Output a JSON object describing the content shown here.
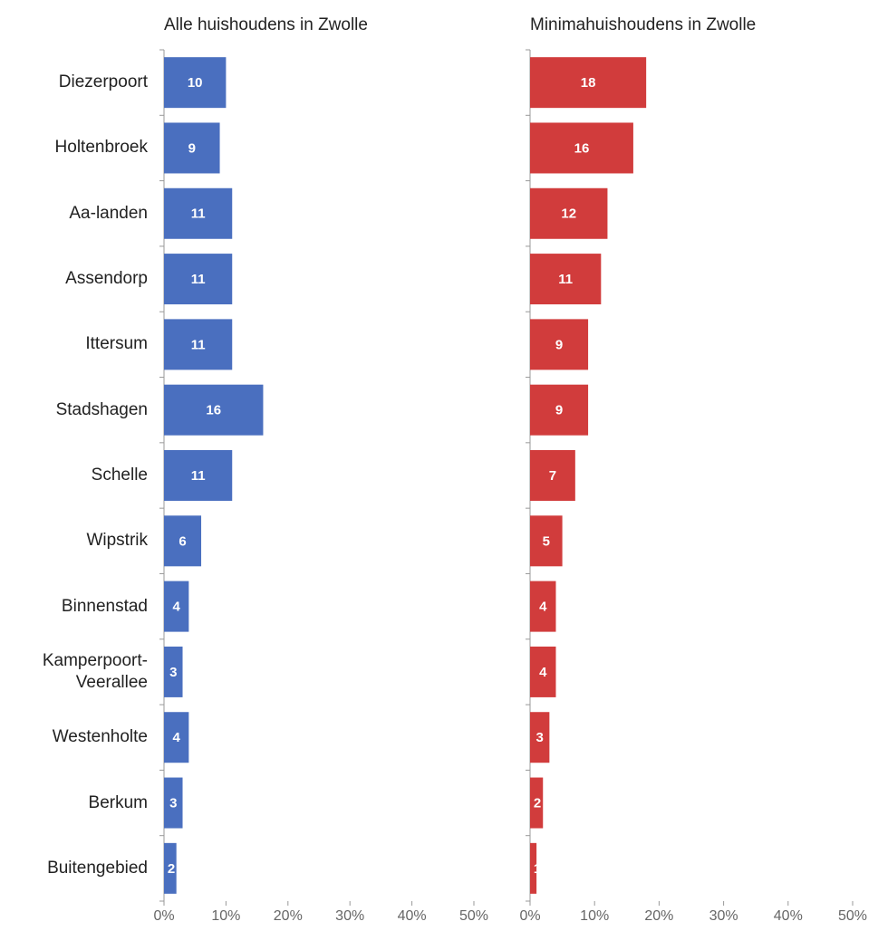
{
  "chart_data": [
    {
      "type": "bar",
      "title": "Alle huishoudens  in Zwolle",
      "categories": [
        "Diezerpoort",
        "Holtenbroek",
        "Aa-landen",
        "Assendorp",
        "Ittersum",
        "Stadshagen",
        "Schelle",
        "Wipstrik",
        "Binnenstad",
        "Kamperpoort-Veerallee",
        "Westenholte",
        "Berkum",
        "Buitengebied"
      ],
      "values": [
        10,
        9,
        11,
        11,
        11,
        16,
        11,
        6,
        4,
        3,
        4,
        3,
        2
      ],
      "color": "#4a6fbf",
      "xlim": [
        0,
        50
      ],
      "xticks": [
        {
          "value": 0,
          "label": "0%"
        },
        {
          "value": 10,
          "label": "10%"
        },
        {
          "value": 20,
          "label": "20%"
        },
        {
          "value": 30,
          "label": "30%"
        },
        {
          "value": 40,
          "label": "40%"
        },
        {
          "value": 50,
          "label": "50%"
        }
      ]
    },
    {
      "type": "bar",
      "title": "Minimahuishoudens  in Zwolle",
      "values": [
        18,
        16,
        12,
        11,
        9,
        9,
        7,
        5,
        4,
        4,
        3,
        2,
        1
      ],
      "color": "#d13c3c",
      "xlim": [
        0,
        50
      ],
      "xticks": [
        {
          "value": 0,
          "label": "0%"
        },
        {
          "value": 10,
          "label": "10%"
        },
        {
          "value": 20,
          "label": "20%"
        },
        {
          "value": 30,
          "label": "30%"
        },
        {
          "value": 40,
          "label": "40%"
        },
        {
          "value": 50,
          "label": "50%"
        }
      ]
    }
  ]
}
